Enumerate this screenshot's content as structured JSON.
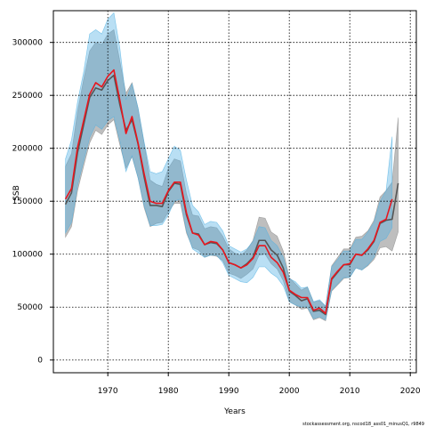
{
  "chart_data": {
    "type": "line",
    "xlabel": "Years",
    "ylabel": "SSB",
    "xlim": [
      1961,
      2021
    ],
    "ylim": [
      -12000,
      330000
    ],
    "xticks": [
      1970,
      1980,
      1990,
      2000,
      2010,
      2020
    ],
    "yticks": [
      0,
      50000,
      100000,
      150000,
      200000,
      250000,
      300000
    ],
    "grid": true,
    "footnote": "stockassessment.org, nscod18_ass01_minusQ1, r9849",
    "series": [
      {
        "color": "#555555",
        "band_color": "#888888",
        "x": [
          1963,
          1964,
          1965,
          1966,
          1967,
          1968,
          1969,
          1970,
          1971,
          1972,
          1973,
          1974,
          1975,
          1976,
          1977,
          1978,
          1979,
          1980,
          1981,
          1982,
          1983,
          1984,
          1985,
          1986,
          1987,
          1988,
          1989,
          1990,
          1991,
          1992,
          1993,
          1994,
          1995,
          1996,
          1997,
          1998,
          1999,
          2000,
          2001,
          2002,
          2003,
          2004,
          2005,
          2006,
          2007,
          2008,
          2009,
          2010,
          2011,
          2012,
          2013,
          2014,
          2015,
          2016,
          2017,
          2018
        ],
        "values": [
          147000,
          158000,
          196000,
          222000,
          248000,
          257000,
          255000,
          264000,
          269000,
          241000,
          217000,
          227000,
          204000,
          173000,
          146000,
          146000,
          145000,
          159000,
          167000,
          166000,
          137000,
          120000,
          119000,
          109000,
          111000,
          110000,
          104000,
          92000,
          90000,
          87000,
          91000,
          97000,
          113000,
          113000,
          104000,
          99000,
          87000,
          65000,
          61000,
          56000,
          58000,
          46000,
          47000,
          43000,
          76000,
          83000,
          90000,
          90000,
          100000,
          99000,
          104000,
          112000,
          129000,
          132000,
          133000,
          167000
        ],
        "lower": [
          116000,
          126000,
          160000,
          183000,
          205000,
          217000,
          213000,
          222000,
          227000,
          203000,
          181000,
          192000,
          172000,
          144000,
          126000,
          129000,
          130000,
          140000,
          148000,
          148000,
          120000,
          106000,
          104000,
          97000,
          99000,
          98000,
          94000,
          82000,
          80000,
          77000,
          81000,
          86000,
          99000,
          100000,
          91000,
          86000,
          75000,
          55000,
          52000,
          48000,
          49000,
          38000,
          40000,
          37000,
          65000,
          71000,
          77000,
          78000,
          87000,
          85000,
          89000,
          95000,
          106000,
          107000,
          103000,
          121000
        ],
        "upper": [
          183000,
          195000,
          235000,
          265000,
          292000,
          300000,
          298000,
          308000,
          312000,
          282000,
          252000,
          262000,
          238000,
          205000,
          170000,
          166000,
          164000,
          181000,
          190000,
          188000,
          157000,
          137000,
          136000,
          124000,
          126000,
          125000,
          117000,
          105000,
          101000,
          99000,
          104000,
          113000,
          135000,
          134000,
          121000,
          117000,
          103000,
          78000,
          72000,
          66000,
          69000,
          55000,
          56000,
          51000,
          89000,
          97000,
          105000,
          105000,
          116000,
          117000,
          122000,
          132000,
          154000,
          160000,
          168000,
          229000
        ]
      },
      {
        "color": "#e8161e",
        "band_color": "#4fb0e3",
        "x": [
          1963,
          1964,
          1965,
          1966,
          1967,
          1968,
          1969,
          1970,
          1971,
          1972,
          1973,
          1974,
          1975,
          1976,
          1977,
          1978,
          1979,
          1980,
          1981,
          1982,
          1983,
          1984,
          1985,
          1986,
          1987,
          1988,
          1989,
          1990,
          1991,
          1992,
          1993,
          1994,
          1995,
          1996,
          1997,
          1998,
          1999,
          2000,
          2001,
          2002,
          2003,
          2004,
          2005,
          2006,
          2007,
          2008,
          2009,
          2010,
          2011,
          2012,
          2013,
          2014,
          2015,
          2016,
          2017
        ],
        "values": [
          152000,
          162000,
          201000,
          226000,
          251000,
          262000,
          258000,
          268000,
          274000,
          245000,
          214000,
          230000,
          205000,
          176000,
          150000,
          148000,
          148000,
          160000,
          168000,
          168000,
          139000,
          120000,
          118000,
          109000,
          112000,
          111000,
          104000,
          92000,
          90000,
          87000,
          90000,
          96000,
          108000,
          108000,
          97000,
          92000,
          83000,
          66000,
          62000,
          59000,
          59000,
          47000,
          49000,
          44000,
          77000,
          84000,
          90000,
          91000,
          100000,
          99000,
          105000,
          113000,
          130000,
          133000,
          152000
        ],
        "lower": [
          120000,
          130000,
          165000,
          188000,
          210000,
          222000,
          218000,
          226000,
          230000,
          207000,
          178000,
          193000,
          172000,
          146000,
          127000,
          127000,
          128000,
          137000,
          150000,
          152000,
          122000,
          105000,
          101000,
          97000,
          99000,
          99000,
          92000,
          80000,
          77000,
          74000,
          73000,
          78000,
          88000,
          88000,
          82000,
          78000,
          70000,
          55000,
          52000,
          50000,
          50000,
          39000,
          41000,
          38000,
          66000,
          72000,
          78000,
          78000,
          87000,
          85000,
          90000,
          97000,
          112000,
          115000,
          125000
        ],
        "upper": [
          190000,
          208000,
          244000,
          272000,
          308000,
          312000,
          308000,
          322000,
          328000,
          294000,
          246000,
          261000,
          238000,
          206000,
          178000,
          176000,
          178000,
          190000,
          202000,
          198000,
          170000,
          146000,
          140000,
          128000,
          131000,
          130000,
          122000,
          108000,
          105000,
          102000,
          105000,
          112000,
          126000,
          125000,
          113000,
          108000,
          97000,
          77000,
          74000,
          68000,
          69000,
          55000,
          57000,
          51000,
          88000,
          95000,
          103000,
          103000,
          114000,
          114000,
          121000,
          130000,
          150000,
          160000,
          211000
        ]
      }
    ]
  }
}
